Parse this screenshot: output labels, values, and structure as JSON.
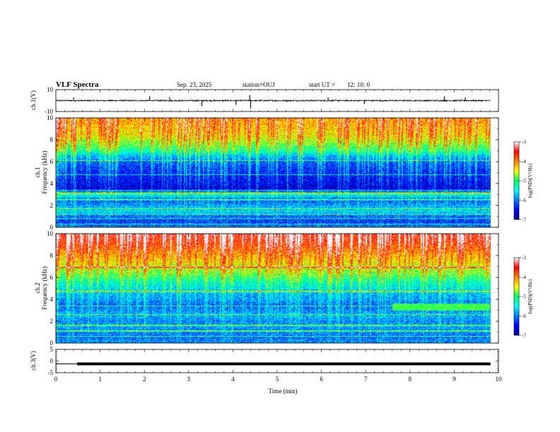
{
  "header": {
    "title": "VLF Spectra",
    "date": "Sep. 23, 2025",
    "station": "station=OUJ",
    "start_label": "start UT =",
    "start_time": "12: 10: 0"
  },
  "chart_data": [
    {
      "type": "line",
      "id": "ch1-waveform",
      "ylabel": "ch.1(V)",
      "ylim": [
        -10,
        10
      ],
      "yticks": [
        10,
        -10
      ],
      "xlim": [
        0,
        10
      ],
      "baseline": 0,
      "noise_amplitude": 0.6,
      "data_end_min": 9.82,
      "spikes": [
        {
          "t": 0.4,
          "v": 3
        },
        {
          "t": 2.12,
          "v": 4
        },
        {
          "t": 2.57,
          "v": 3
        },
        {
          "t": 3.3,
          "v": -5
        },
        {
          "t": 4.07,
          "v": -4
        },
        {
          "t": 4.38,
          "v": 5
        },
        {
          "t": 4.4,
          "v": -7
        },
        {
          "t": 6.15,
          "v": 3
        },
        {
          "t": 6.97,
          "v": -3
        },
        {
          "t": 8.78,
          "v": 4
        },
        {
          "t": 9.25,
          "v": 3
        }
      ]
    },
    {
      "type": "heatmap",
      "id": "ch1-spectrogram",
      "ylabel": "ch.1",
      "ylabel2": "Frequency (kHz)",
      "ylim": [
        0,
        10
      ],
      "yticks": [
        0,
        2,
        4,
        6,
        8,
        10
      ],
      "xlim": [
        0,
        10
      ],
      "data_end_min": 9.82,
      "colorbar": {
        "label": "log(PSD)(V²/Hz)",
        "range": [
          -7,
          -3
        ],
        "ticks": [
          -3,
          -4,
          -5,
          -6,
          -7
        ]
      },
      "profile_freq_khz": [
        0,
        0.5,
        1,
        1.5,
        2,
        2.5,
        3,
        3.5,
        4,
        4.5,
        5,
        5.5,
        6,
        6.5,
        7,
        7.5,
        8,
        8.5,
        9,
        9.5,
        10
      ],
      "profile_log_psd": [
        -6.0,
        -6.3,
        -6.1,
        -5.6,
        -5.9,
        -6.2,
        -5.4,
        -6.7,
        -6.6,
        -6.5,
        -6.4,
        -6.3,
        -6.1,
        -5.8,
        -5.2,
        -4.9,
        -4.6,
        -4.4,
        -4.3,
        -4.2,
        -4.1
      ],
      "lines_khz": [
        0.3,
        0.8,
        1.2,
        1.7,
        2.5,
        3.1,
        3.4,
        4.8,
        6.1
      ]
    },
    {
      "type": "heatmap",
      "id": "ch2-spectrogram",
      "ylabel": "ch.2",
      "ylabel2": "Frequency (kHz)",
      "ylim": [
        0,
        10
      ],
      "yticks": [
        0,
        2,
        4,
        6,
        8,
        10
      ],
      "xlim": [
        0,
        10
      ],
      "data_end_min": 9.82,
      "colorbar": {
        "label": "log(PSD)(V²/Hz)",
        "range": [
          -7,
          -3
        ],
        "ticks": [
          -3,
          -4,
          -5,
          -6,
          -7
        ]
      },
      "profile_freq_khz": [
        0,
        0.5,
        1,
        1.5,
        2,
        2.5,
        3,
        3.5,
        4,
        4.5,
        5,
        5.5,
        6,
        6.5,
        7,
        7.5,
        8,
        8.5,
        9,
        9.5,
        10
      ],
      "profile_log_psd": [
        -5.9,
        -6.1,
        -6.0,
        -5.9,
        -6.0,
        -5.8,
        -6.0,
        -6.1,
        -5.9,
        -5.8,
        -5.6,
        -5.4,
        -5.1,
        -4.8,
        -4.6,
        -4.4,
        -4.2,
        -4.0,
        -3.8,
        -3.6,
        -3.5
      ],
      "lines_khz": [
        0.6,
        1.1,
        1.6,
        2.6,
        3.4,
        4.7,
        6.9
      ],
      "band_feature": {
        "t_start": 7.6,
        "t_end": 9.8,
        "f_low": 3.0,
        "f_high": 3.6
      }
    },
    {
      "type": "line",
      "id": "ch3-waveform",
      "ylabel": "ch.3(V)",
      "xlabel": "Time (min)",
      "ylim": [
        -5,
        5
      ],
      "yticks": [
        5,
        0,
        -5
      ],
      "xlim": [
        0,
        10
      ],
      "xticks": [
        0,
        1,
        2,
        3,
        4,
        5,
        6,
        7,
        8,
        9,
        10
      ],
      "segments": [
        {
          "t0": 0.0,
          "t1": 0.48,
          "v": -1.2,
          "width": "thin"
        },
        {
          "t0": 0.48,
          "t1": 9.82,
          "v": -1.2,
          "width": "thick"
        }
      ]
    }
  ]
}
